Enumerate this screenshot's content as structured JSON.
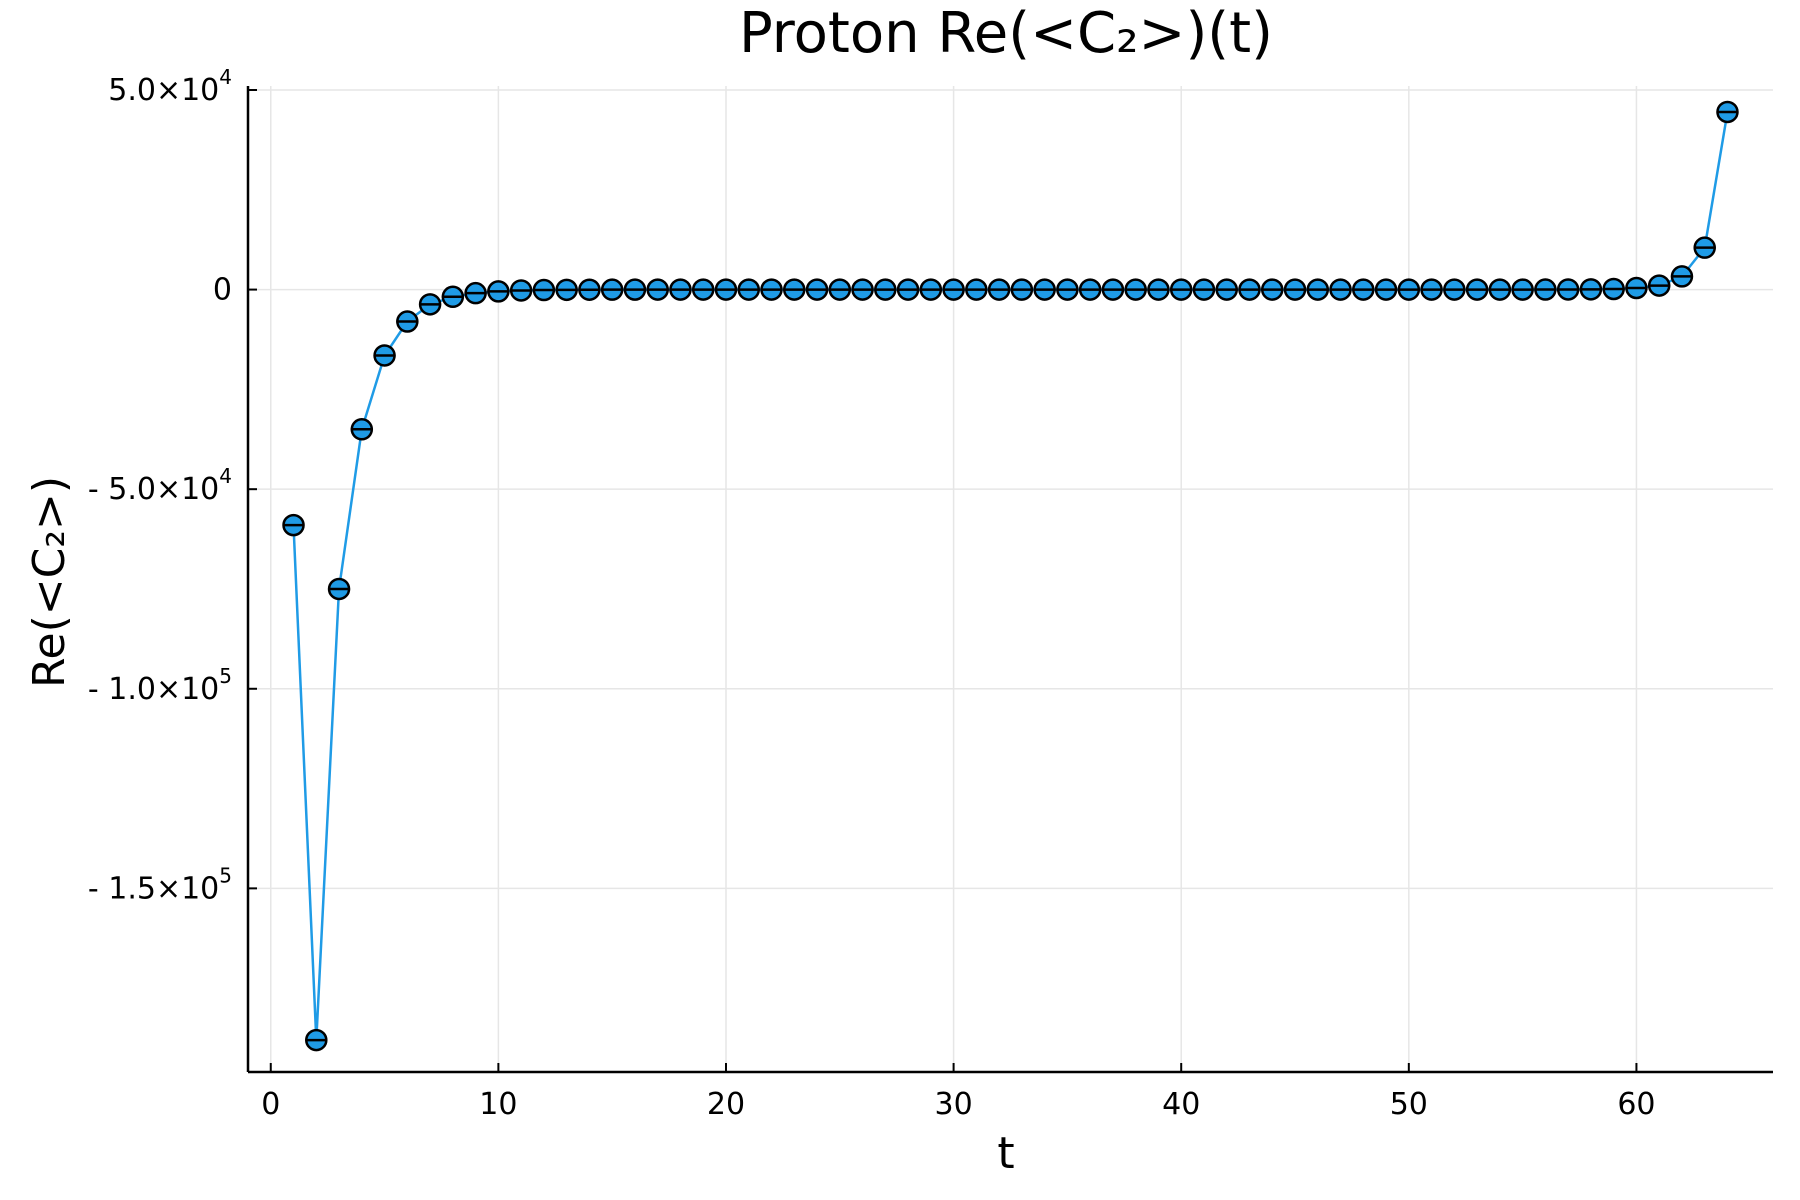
{
  "chart_data": {
    "type": "scatter",
    "title": "Proton Re(<C₂>)(t)",
    "xlabel": "t",
    "ylabel": "Re(<C₂>)",
    "xlim": [
      -1,
      66
    ],
    "ylim": [
      -196000,
      51000
    ],
    "grid": true,
    "legend": "none",
    "color": "#1f9be6",
    "marker": "circle-with-errorbar",
    "x_ticks": [
      {
        "value": 0,
        "label": "0"
      },
      {
        "value": 10,
        "label": "10"
      },
      {
        "value": 20,
        "label": "20"
      },
      {
        "value": 30,
        "label": "30"
      },
      {
        "value": 40,
        "label": "40"
      },
      {
        "value": 50,
        "label": "50"
      },
      {
        "value": 60,
        "label": "60"
      }
    ],
    "y_ticks": [
      {
        "value": 50000,
        "mantissa": "5.0×10",
        "exp": "4"
      },
      {
        "value": 0,
        "mantissa": "0",
        "exp": ""
      },
      {
        "value": -50000,
        "mantissa": "- 5.0×10",
        "exp": "4"
      },
      {
        "value": -100000,
        "mantissa": "- 1.0×10",
        "exp": "5"
      },
      {
        "value": -150000,
        "mantissa": "- 1.5×10",
        "exp": "5"
      }
    ],
    "series": [
      {
        "x": [
          1,
          2,
          3,
          4,
          5,
          6,
          7,
          8,
          9,
          10,
          11,
          12,
          13,
          14,
          15,
          16,
          17,
          18,
          19,
          20,
          21,
          22,
          23,
          24,
          25,
          26,
          27,
          28,
          29,
          30,
          31,
          32,
          33,
          34,
          35,
          36,
          37,
          38,
          39,
          40,
          41,
          42,
          43,
          44,
          45,
          46,
          47,
          48,
          49,
          50,
          51,
          52,
          53,
          54,
          55,
          56,
          57,
          58,
          59,
          60,
          61,
          62,
          63,
          64
        ],
        "y": [
          -59000,
          -188000,
          -75000,
          -35000,
          -16500,
          -8000,
          -3700,
          -1800,
          -900,
          -450,
          -220,
          -110,
          -60,
          -30,
          -15,
          -8,
          -4,
          -2,
          -1,
          0,
          0,
          0,
          0,
          0,
          0,
          0,
          0,
          0,
          0,
          0,
          0,
          0,
          0,
          0,
          0,
          0,
          0,
          0,
          0,
          0,
          0,
          0,
          0,
          0,
          0,
          0,
          0,
          0,
          0,
          0,
          0,
          0,
          0,
          0,
          0,
          10,
          30,
          60,
          150,
          400,
          1000,
          3300,
          10500,
          44500
        ]
      }
    ]
  }
}
